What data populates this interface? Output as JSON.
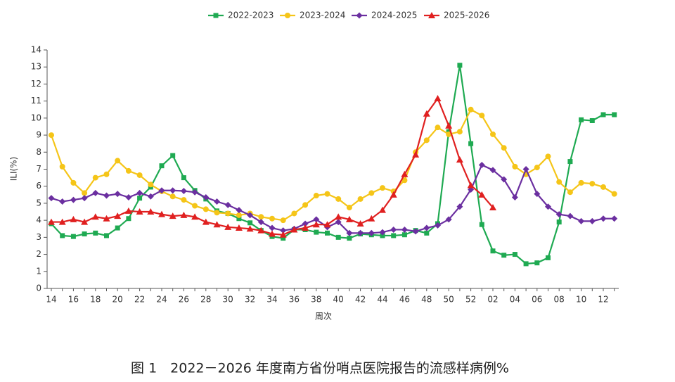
{
  "chart_data": {
    "type": "line",
    "caption": "图 1　2022－2026 年度南方省份哨点医院报告的流感样病例%",
    "x_label": "周次",
    "y_label": "ILI(%)",
    "categories": [
      "14",
      null,
      "16",
      null,
      "18",
      null,
      "20",
      null,
      "22",
      null,
      "24",
      null,
      "26",
      null,
      "28",
      null,
      "30",
      null,
      "32",
      null,
      "34",
      null,
      "36",
      null,
      "38",
      null,
      "40",
      null,
      "42",
      null,
      "44",
      null,
      "46",
      null,
      "48",
      null,
      "50",
      null,
      "52",
      null,
      "02",
      null,
      "04",
      null,
      "06",
      null,
      "08",
      null,
      "10",
      null,
      "12",
      null
    ],
    "ylim": [
      0,
      14
    ],
    "yticks": [
      0,
      1,
      2,
      3,
      4,
      5,
      6,
      7,
      8,
      9,
      10,
      11,
      12,
      13,
      14
    ],
    "series": [
      {
        "name": "2022-2023",
        "color": "#1faa52",
        "marker": "square",
        "values": [
          3.8,
          3.1,
          3.05,
          3.2,
          3.25,
          3.1,
          3.55,
          4.1,
          5.3,
          5.95,
          7.2,
          7.8,
          6.5,
          5.75,
          5.25,
          4.55,
          4.4,
          4.1,
          3.85,
          3.4,
          3.05,
          2.95,
          3.45,
          3.45,
          3.3,
          3.25,
          3.0,
          2.95,
          3.2,
          3.15,
          3.1,
          3.1,
          3.15,
          3.4,
          3.25,
          3.8,
          9.2,
          13.1,
          8.5,
          3.75,
          2.2,
          1.95,
          2.0,
          1.45,
          1.5,
          1.8,
          3.9,
          7.45,
          9.9,
          9.85,
          10.2,
          10.2
        ]
      },
      {
        "name": "2023-2024",
        "color": "#f5c518",
        "marker": "circle",
        "values": [
          9.0,
          7.15,
          6.2,
          5.6,
          6.5,
          6.7,
          7.5,
          6.9,
          6.65,
          6.1,
          5.7,
          5.4,
          5.2,
          4.85,
          4.65,
          4.45,
          4.4,
          4.3,
          4.4,
          4.2,
          4.1,
          4.0,
          4.4,
          4.9,
          5.45,
          5.55,
          5.25,
          4.75,
          5.25,
          5.6,
          5.9,
          5.7,
          6.35,
          8.0,
          8.7,
          9.45,
          9.05,
          9.2,
          10.5,
          10.15,
          9.05,
          8.25,
          7.15,
          6.7,
          7.1,
          7.75,
          6.25,
          5.65,
          6.2,
          6.15,
          5.95,
          5.55
        ]
      },
      {
        "name": "2024-2025",
        "color": "#6b2fa0",
        "marker": "diamond",
        "values": [
          5.3,
          5.1,
          5.2,
          5.3,
          5.6,
          5.45,
          5.55,
          5.35,
          5.6,
          5.4,
          5.75,
          5.75,
          5.72,
          5.65,
          5.35,
          5.1,
          4.9,
          4.6,
          4.3,
          3.9,
          3.55,
          3.4,
          3.5,
          3.8,
          4.05,
          3.6,
          3.9,
          3.25,
          3.25,
          3.25,
          3.3,
          3.45,
          3.45,
          3.35,
          3.55,
          3.7,
          4.05,
          4.8,
          5.8,
          7.25,
          6.95,
          6.4,
          5.35,
          7.0,
          5.55,
          4.8,
          4.35,
          4.25,
          3.95,
          3.95,
          4.1,
          4.1
        ]
      },
      {
        "name": "2025-2026",
        "color": "#e02020",
        "marker": "triangle",
        "values": [
          3.9,
          3.9,
          4.05,
          3.9,
          4.2,
          4.1,
          4.25,
          4.55,
          4.5,
          4.5,
          4.35,
          4.25,
          4.3,
          4.2,
          3.9,
          3.75,
          3.6,
          3.55,
          3.5,
          3.4,
          3.2,
          3.15,
          3.45,
          3.55,
          3.75,
          3.75,
          4.2,
          4.05,
          3.8,
          4.1,
          4.6,
          5.5,
          6.7,
          7.85,
          10.25,
          11.15,
          9.55,
          7.55,
          6.05,
          5.5,
          4.75,
          null,
          null,
          null,
          null,
          null,
          null,
          null,
          null,
          null,
          null,
          null
        ]
      }
    ]
  }
}
